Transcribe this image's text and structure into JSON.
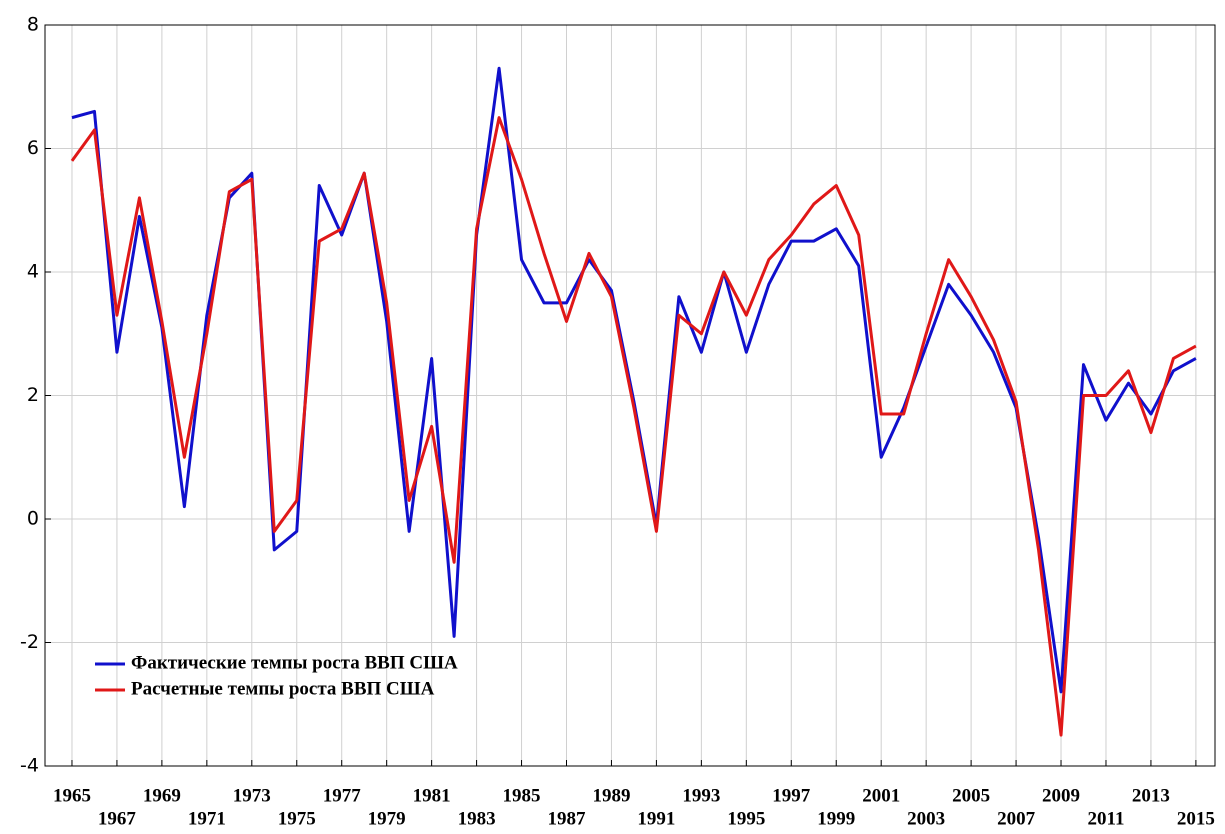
{
  "chart_data": {
    "type": "line",
    "x": [
      1965,
      1966,
      1967,
      1968,
      1969,
      1970,
      1971,
      1972,
      1973,
      1974,
      1975,
      1976,
      1977,
      1978,
      1979,
      1980,
      1981,
      1982,
      1983,
      1984,
      1985,
      1986,
      1987,
      1988,
      1989,
      1990,
      1991,
      1992,
      1993,
      1994,
      1995,
      1996,
      1997,
      1998,
      1999,
      2000,
      2001,
      2002,
      2003,
      2004,
      2005,
      2006,
      2007,
      2008,
      2009,
      2010,
      2011,
      2012,
      2013,
      2014,
      2015
    ],
    "series": [
      {
        "name": "Фактические темпы роста ВВП США",
        "color": "#1010cc",
        "values": [
          6.5,
          6.6,
          2.7,
          4.9,
          3.1,
          0.2,
          3.3,
          5.2,
          5.6,
          -0.5,
          -0.2,
          5.4,
          4.6,
          5.6,
          3.2,
          -0.2,
          2.6,
          -1.9,
          4.6,
          7.3,
          4.2,
          3.5,
          3.5,
          4.2,
          3.7,
          1.9,
          -0.1,
          3.6,
          2.7,
          4.0,
          2.7,
          3.8,
          4.5,
          4.5,
          4.7,
          4.1,
          1.0,
          1.8,
          2.8,
          3.8,
          3.3,
          2.7,
          1.8,
          -0.3,
          -2.8,
          2.5,
          1.6,
          2.2,
          1.7,
          2.4,
          2.6
        ]
      },
      {
        "name": "Расчетные темпы роста ВВП США",
        "color": "#e01818",
        "values": [
          5.8,
          6.3,
          3.3,
          5.2,
          3.2,
          1.0,
          3.0,
          5.3,
          5.5,
          -0.2,
          0.3,
          4.5,
          4.7,
          5.6,
          3.5,
          0.3,
          1.5,
          -0.7,
          4.7,
          6.5,
          5.5,
          4.3,
          3.2,
          4.3,
          3.6,
          1.8,
          -0.2,
          3.3,
          3.0,
          4.0,
          3.3,
          4.2,
          4.6,
          5.1,
          5.4,
          4.6,
          1.7,
          1.7,
          3.0,
          4.2,
          3.6,
          2.9,
          1.9,
          -0.5,
          -3.5,
          2.0,
          2.0,
          2.4,
          1.4,
          2.6,
          2.8
        ]
      }
    ],
    "xlim": [
      1963.8,
      2015.85
    ],
    "xticks": [
      1965,
      1967,
      1969,
      1971,
      1973,
      1975,
      1977,
      1979,
      1981,
      1983,
      1985,
      1987,
      1989,
      1991,
      1993,
      1995,
      1997,
      1999,
      2001,
      2003,
      2005,
      2007,
      2009,
      2011,
      2013,
      2015
    ],
    "ylim": [
      -4,
      8
    ],
    "yticks": [
      -4,
      -2,
      0,
      2,
      4,
      6,
      8
    ],
    "grid": true,
    "legend": "lower left"
  }
}
